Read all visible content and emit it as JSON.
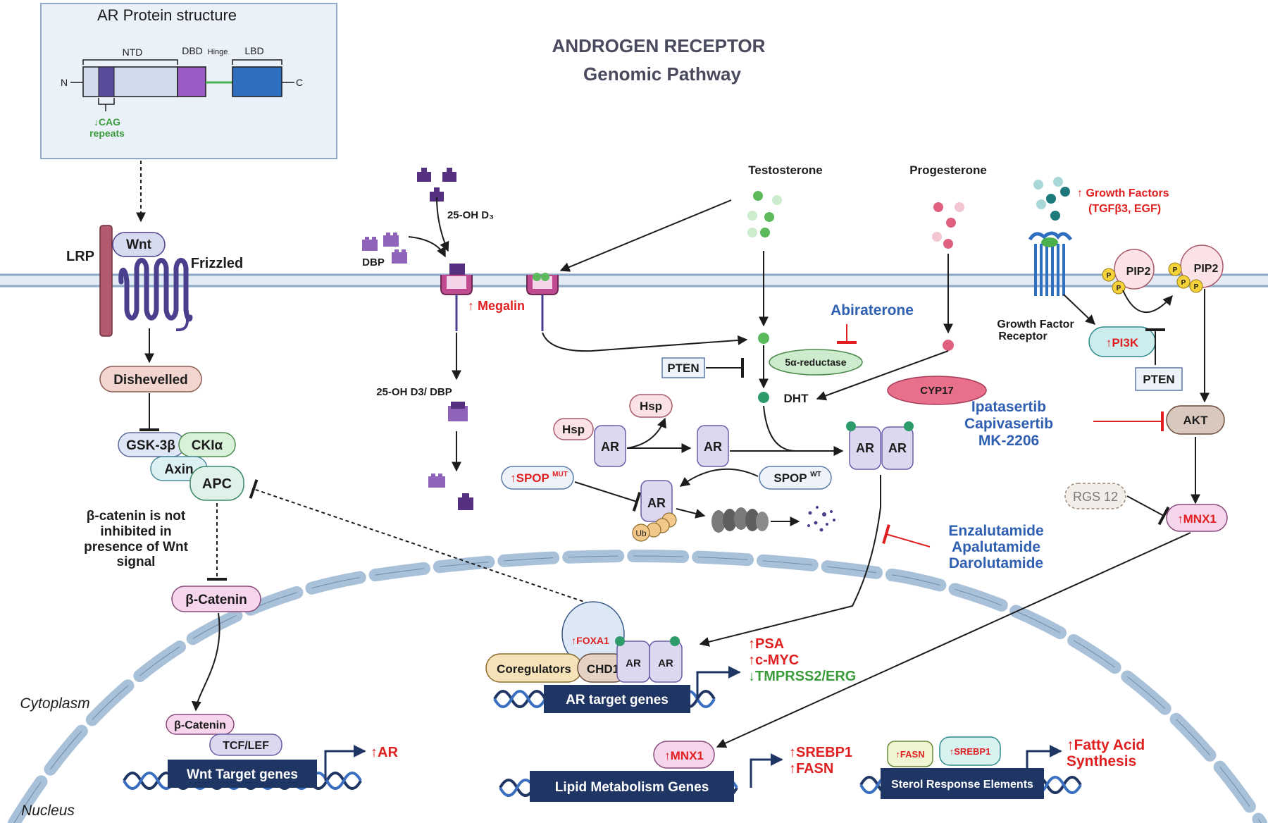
{
  "title": {
    "line1": "ANDROGEN RECEPTOR",
    "line2": "Genomic Pathway"
  },
  "protein": {
    "heading": "AR Protein structure",
    "ntd": "NTD",
    "dbd": "DBD",
    "hinge": "Hinge",
    "lbd": "LBD",
    "n_term": "N",
    "c_term": "C",
    "cag_line1": "↓CAG",
    "cag_line2": "repeats"
  },
  "wnt": {
    "lrp": "LRP",
    "wnt": "Wnt",
    "frizzled": "Frizzled",
    "dishevelled": "Dishevelled",
    "gsk": "GSK-3β",
    "ckia": "CKIα",
    "axin": "Axin",
    "apc": "APC",
    "note_lines": [
      "β-catenin is not",
      "inhibited in",
      "presence of Wnt",
      "signal"
    ],
    "beta_catenin": "β-Catenin",
    "nuc_beta_catenin": "β-Catenin",
    "tcf": "TCF/LEF",
    "target_genes": "Wnt Target genes",
    "output": "↑AR"
  },
  "vitd": {
    "oh_d3": "25-OH D₃",
    "dbp": "DBP",
    "megalin": "↑ Megalin",
    "complex": "25-OH D3/ DBP"
  },
  "steroids": {
    "testosterone": "Testosterone",
    "progesterone": "Progesterone",
    "abiraterone": "Abiraterone",
    "five_alpha": "5α-reductase",
    "pten": "PTEN",
    "dht": "DHT",
    "cyp17": "CYP17"
  },
  "ar_cycle": {
    "hsp": "Hsp",
    "ar": "AR",
    "spop_mut": "↑SPOP",
    "spop_mut_sup": "MUT",
    "spop_wt": "SPOP",
    "spop_wt_sup": "WT",
    "ub": "Ub",
    "inhibitors": [
      "Enzalutamide",
      "Apalutamide",
      "Darolutamide"
    ]
  },
  "growth": {
    "factors_line1": "↑ Growth Factors",
    "factors_line2": "(TGFβ3, EGF)",
    "receptor_line1": "Growth Factor",
    "receptor_line2": "Receptor",
    "pip2": "PIP2",
    "p": "P",
    "pi3k": "↑PI3K",
    "pten": "PTEN",
    "akt": "AKT",
    "inhibitors": [
      "Ipatasertib",
      "Capivasertib",
      "MK-2206"
    ],
    "rgs12": "RGS 12",
    "mnx1": "↑MNX1"
  },
  "nucleus": {
    "cytoplasm": "Cytoplasm",
    "nucleus": "Nucleus",
    "foxa1": "↑FOXA1",
    "coregulators": "Coregulators",
    "chd1": "CHD1",
    "ar": "AR",
    "ar_target_genes": "AR target genes",
    "out_psa": "↑PSA",
    "out_cmyc": "↑c-MYC",
    "out_tmprss2": "↓TMPRSS2/ERG",
    "mnx1": "↑MNX1",
    "lipid_genes": "Lipid Metabolism Genes",
    "out_srebp1": "↑SREBP1",
    "out_fasn": "↑FASN",
    "fasn": "↑FASN",
    "srebp1": "↑SREBP1",
    "sterol": "Sterol Response Elements",
    "fatty_line1": "↑Fatty Acid",
    "fatty_line2": "Synthesis"
  },
  "colors": {
    "membrane": "#a9c0d9",
    "purple_dark": "#55307f",
    "ar_fill": "#ddd8f0",
    "red_text": "#e02020",
    "blue_text": "#2f5fb0",
    "green_text": "#3c9c3c",
    "dna_box": "#1f3563"
  }
}
